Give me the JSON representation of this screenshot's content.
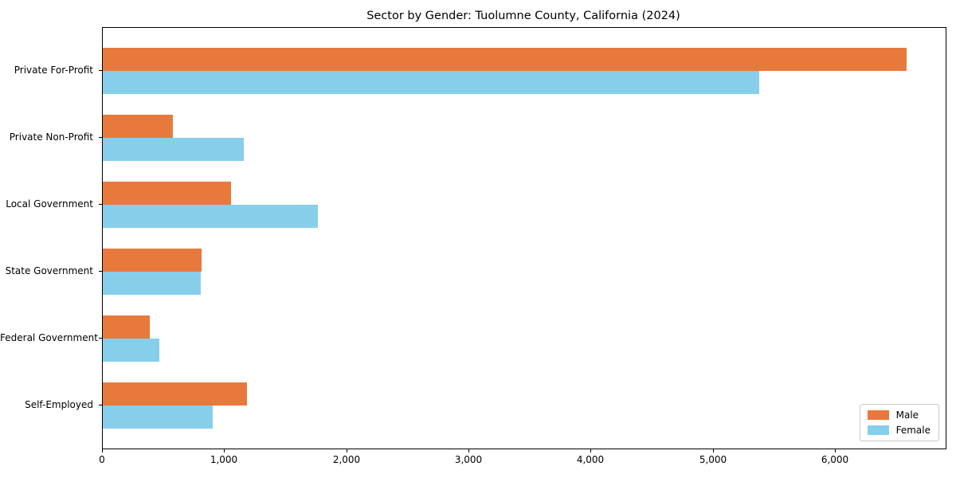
{
  "chart_data": {
    "type": "bar",
    "orientation": "horizontal",
    "title": "Sector by Gender: Tuolumne County, California (2024)",
    "categories": [
      "Private For-Profit",
      "Private Non-Profit",
      "Local Government",
      "State Government",
      "Federal Government",
      "Self-Employed"
    ],
    "series": [
      {
        "name": "Male",
        "color": "#e8793d",
        "values": [
          6580,
          575,
          1050,
          810,
          385,
          1180
        ]
      },
      {
        "name": "Female",
        "color": "#87ceeb",
        "values": [
          5375,
          1155,
          1760,
          800,
          465,
          900
        ]
      }
    ],
    "xlabel": "",
    "ylabel": "",
    "xlim": [
      0,
      6900
    ],
    "xticks": [
      0,
      1000,
      2000,
      3000,
      4000,
      5000,
      6000
    ],
    "xtick_labels": [
      "0",
      "1,000",
      "2,000",
      "3,000",
      "4,000",
      "5,000",
      "6,000"
    ],
    "grid": false,
    "legend_position": "lower right"
  },
  "legend": {
    "items": [
      {
        "label": "Male",
        "color": "#e8793d"
      },
      {
        "label": "Female",
        "color": "#87ceeb"
      }
    ]
  }
}
